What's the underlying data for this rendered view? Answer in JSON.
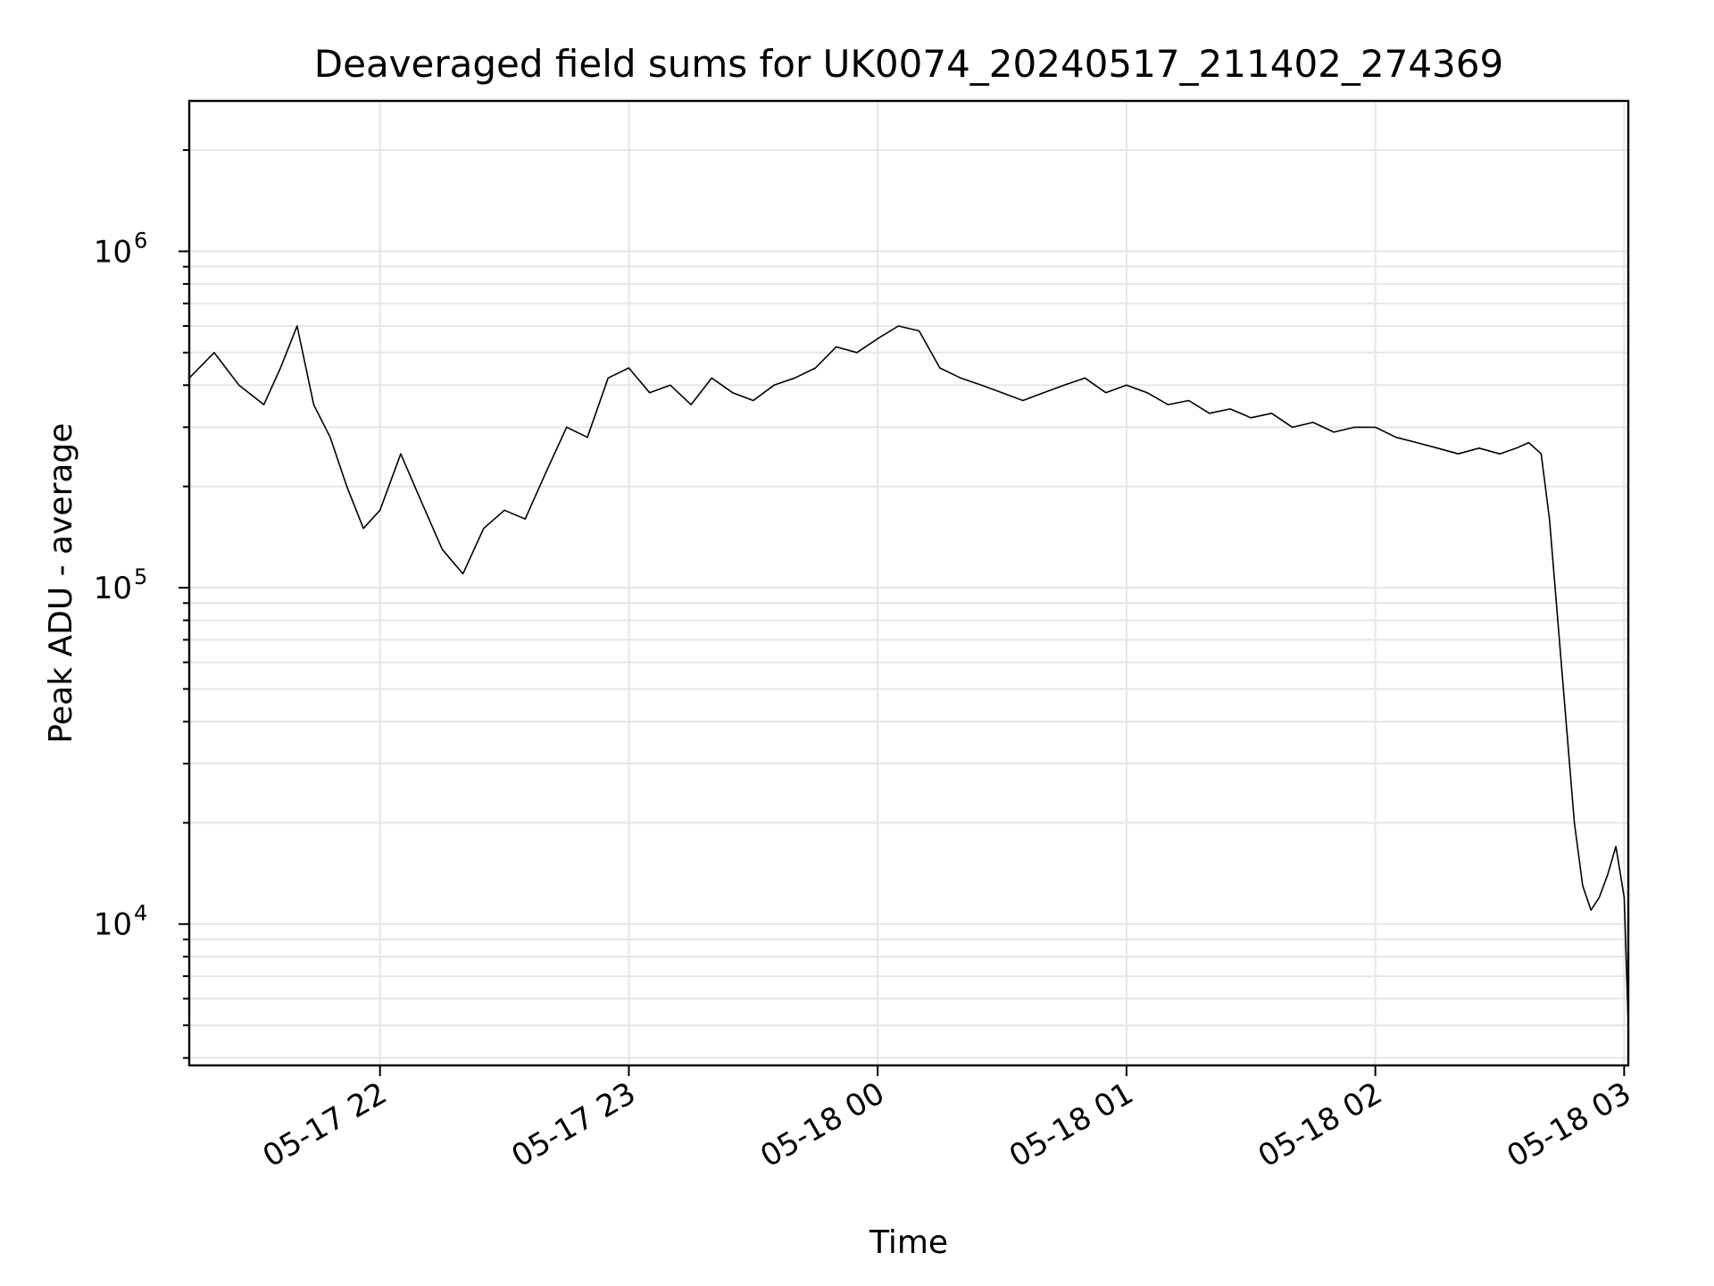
{
  "chart_data": {
    "type": "line",
    "title": "Deaveraged field sums for UK0074_20240517_211402_274369",
    "xlabel": "Time",
    "ylabel": "Peak ADU - average",
    "yscale": "log",
    "grid": true,
    "xlim": [
      "2024-05-17 21:14",
      "2024-05-18 03:01"
    ],
    "ylim": [
      3800,
      2800000
    ],
    "xticks": [
      {
        "value": "2024-05-17 22:00",
        "label": "05-17 22"
      },
      {
        "value": "2024-05-17 23:00",
        "label": "05-17 23"
      },
      {
        "value": "2024-05-18 00:00",
        "label": "05-18 00"
      },
      {
        "value": "2024-05-18 01:00",
        "label": "05-18 01"
      },
      {
        "value": "2024-05-18 02:00",
        "label": "05-18 02"
      },
      {
        "value": "2024-05-18 03:00",
        "label": "05-18 03"
      }
    ],
    "yticks": [
      {
        "value": 10000,
        "base": "10",
        "exp": "4"
      },
      {
        "value": 100000,
        "base": "10",
        "exp": "5"
      },
      {
        "value": 1000000,
        "base": "10",
        "exp": "6"
      }
    ],
    "series": [
      {
        "color": "#000000",
        "x": [
          "2024-05-17 21:14",
          "2024-05-17 21:20",
          "2024-05-17 21:26",
          "2024-05-17 21:32",
          "2024-05-17 21:36",
          "2024-05-17 21:40",
          "2024-05-17 21:44",
          "2024-05-17 21:48",
          "2024-05-17 21:52",
          "2024-05-17 21:56",
          "2024-05-17 22:00",
          "2024-05-17 22:05",
          "2024-05-17 22:10",
          "2024-05-17 22:15",
          "2024-05-17 22:20",
          "2024-05-17 22:25",
          "2024-05-17 22:30",
          "2024-05-17 22:35",
          "2024-05-17 22:40",
          "2024-05-17 22:45",
          "2024-05-17 22:50",
          "2024-05-17 22:55",
          "2024-05-17 23:00",
          "2024-05-17 23:05",
          "2024-05-17 23:10",
          "2024-05-17 23:15",
          "2024-05-17 23:20",
          "2024-05-17 23:25",
          "2024-05-17 23:30",
          "2024-05-17 23:35",
          "2024-05-17 23:40",
          "2024-05-17 23:45",
          "2024-05-17 23:50",
          "2024-05-17 23:55",
          "2024-05-18 00:00",
          "2024-05-18 00:05",
          "2024-05-18 00:10",
          "2024-05-18 00:15",
          "2024-05-18 00:20",
          "2024-05-18 00:25",
          "2024-05-18 00:30",
          "2024-05-18 00:35",
          "2024-05-18 00:40",
          "2024-05-18 00:45",
          "2024-05-18 00:50",
          "2024-05-18 00:55",
          "2024-05-18 01:00",
          "2024-05-18 01:05",
          "2024-05-18 01:10",
          "2024-05-18 01:15",
          "2024-05-18 01:20",
          "2024-05-18 01:25",
          "2024-05-18 01:30",
          "2024-05-18 01:35",
          "2024-05-18 01:40",
          "2024-05-18 01:45",
          "2024-05-18 01:50",
          "2024-05-18 01:55",
          "2024-05-18 02:00",
          "2024-05-18 02:05",
          "2024-05-18 02:10",
          "2024-05-18 02:15",
          "2024-05-18 02:20",
          "2024-05-18 02:25",
          "2024-05-18 02:30",
          "2024-05-18 02:34",
          "2024-05-18 02:37",
          "2024-05-18 02:40",
          "2024-05-18 02:42",
          "2024-05-18 02:44",
          "2024-05-18 02:46",
          "2024-05-18 02:48",
          "2024-05-18 02:50",
          "2024-05-18 02:52",
          "2024-05-18 02:54",
          "2024-05-18 02:56",
          "2024-05-18 02:58",
          "2024-05-18 03:00",
          "2024-05-18 03:01"
        ],
        "y": [
          420000,
          500000,
          400000,
          350000,
          450000,
          600000,
          350000,
          280000,
          200000,
          150000,
          170000,
          250000,
          180000,
          130000,
          110000,
          150000,
          170000,
          160000,
          220000,
          300000,
          280000,
          420000,
          450000,
          380000,
          400000,
          350000,
          420000,
          380000,
          360000,
          400000,
          420000,
          450000,
          520000,
          500000,
          550000,
          600000,
          580000,
          450000,
          420000,
          400000,
          380000,
          360000,
          380000,
          400000,
          420000,
          380000,
          400000,
          380000,
          350000,
          360000,
          330000,
          340000,
          320000,
          330000,
          300000,
          310000,
          290000,
          300000,
          300000,
          280000,
          270000,
          260000,
          250000,
          260000,
          250000,
          260000,
          270000,
          250000,
          160000,
          80000,
          40000,
          20000,
          13000,
          11000,
          12000,
          14000,
          17000,
          12000,
          5000
        ]
      }
    ]
  }
}
